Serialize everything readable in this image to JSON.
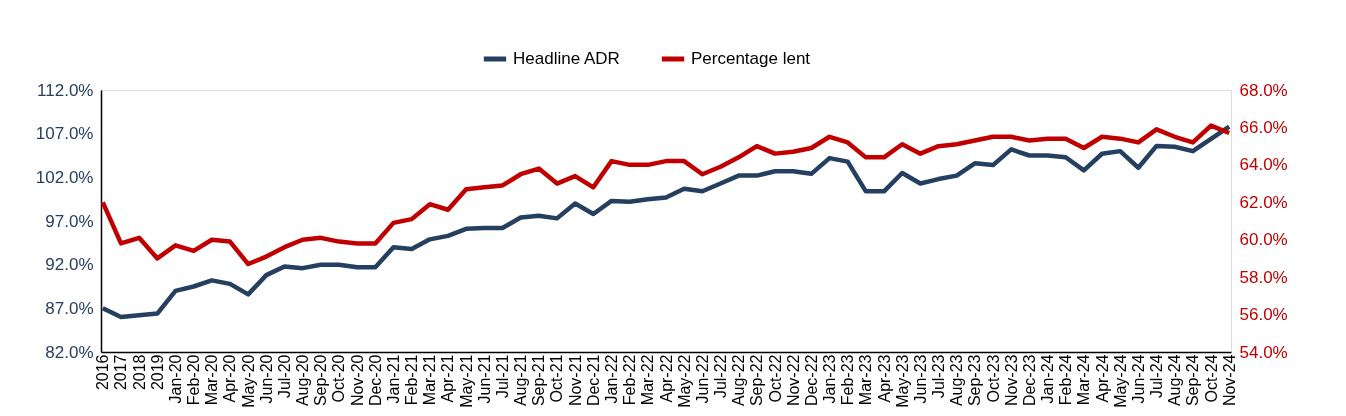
{
  "chart_data": {
    "type": "line",
    "categories": [
      "2016",
      "2017",
      "2018",
      "2019",
      "Jan-20",
      "Feb-20",
      "Mar-20",
      "Apr-20",
      "May-20",
      "Jun-20",
      "Jul-20",
      "Aug-20",
      "Sep-20",
      "Oct-20",
      "Nov-20",
      "Dec-20",
      "Jan-21",
      "Feb-21",
      "Mar-21",
      "Apr-21",
      "May-21",
      "Jun-21",
      "Jul-21",
      "Aug-21",
      "Sep-21",
      "Oct-21",
      "Nov-21",
      "Dec-21",
      "Jan-22",
      "Feb-22",
      "Mar-22",
      "Apr-22",
      "May-22",
      "Jun-22",
      "Jul-22",
      "Aug-22",
      "Sep-22",
      "Oct-22",
      "Nov-22",
      "Dec-22",
      "Jan-23",
      "Feb-23",
      "Mar-23",
      "Apr-23",
      "May-23",
      "Jun-23",
      "Jul-23",
      "Aug-23",
      "Sep-23",
      "Oct-23",
      "Nov-23",
      "Dec-23",
      "Jan-24",
      "Feb-24",
      "Mar-24",
      "Apr-24",
      "May-24",
      "Jun-24",
      "Jul-24",
      "Aug-24",
      "Sep-24",
      "Oct-24",
      "Nov-24"
    ],
    "series": [
      {
        "name": "Headline ADR",
        "color": "#243f60",
        "values": [
          87.0,
          86.0,
          86.2,
          86.4,
          89.0,
          89.5,
          90.2,
          89.8,
          88.6,
          90.8,
          91.8,
          91.6,
          92.0,
          92.0,
          91.7,
          91.7,
          94.0,
          93.8,
          94.9,
          95.3,
          96.1,
          96.2,
          96.2,
          97.4,
          97.6,
          97.3,
          99.0,
          97.8,
          99.3,
          99.2,
          99.5,
          99.7,
          100.7,
          100.4,
          101.3,
          102.2,
          102.2,
          102.7,
          102.7,
          102.4,
          104.2,
          103.8,
          100.4,
          100.4,
          102.5,
          101.3,
          101.8,
          102.2,
          103.6,
          103.4,
          105.2,
          104.5,
          104.5,
          104.3,
          102.8,
          104.7,
          105.0,
          103.1,
          105.6,
          105.5,
          105.0,
          106.4,
          107.8
        ]
      },
      {
        "name": "Percentage lent",
        "color": "#c00000",
        "axis": "y2",
        "values": [
          62.0,
          59.8,
          60.1,
          59.0,
          59.7,
          59.4,
          60.0,
          59.9,
          58.7,
          59.1,
          59.6,
          60.0,
          60.1,
          59.9,
          59.8,
          59.8,
          60.9,
          61.1,
          61.9,
          61.6,
          62.7,
          62.8,
          62.9,
          63.5,
          63.8,
          63.0,
          63.4,
          62.8,
          64.2,
          64.0,
          64.0,
          64.2,
          64.2,
          63.5,
          63.9,
          64.4,
          65.0,
          64.6,
          64.7,
          64.9,
          65.5,
          65.2,
          64.4,
          64.4,
          65.1,
          64.6,
          65.0,
          65.1,
          65.3,
          65.5,
          65.5,
          65.3,
          65.4,
          65.4,
          64.9,
          65.5,
          65.4,
          65.2,
          65.9,
          65.5,
          65.2,
          66.1,
          65.7
        ]
      }
    ],
    "ylim": [
      82,
      112
    ],
    "yticks": [
      {
        "value": 82,
        "label": "82.0%"
      },
      {
        "value": 87,
        "label": "87.0%"
      },
      {
        "value": 92,
        "label": "92.0%"
      },
      {
        "value": 97,
        "label": "97.0%"
      },
      {
        "value": 102,
        "label": "102.0%"
      },
      {
        "value": 107,
        "label": "107.0%"
      },
      {
        "value": 112,
        "label": "112.0%"
      }
    ],
    "y2lim": [
      54,
      68
    ],
    "y2ticks": [
      {
        "value": 54,
        "label": "54.0%"
      },
      {
        "value": 56,
        "label": "56.0%"
      },
      {
        "value": 58,
        "label": "58.0%"
      },
      {
        "value": 60,
        "label": "60.0%"
      },
      {
        "value": 62,
        "label": "62.0%"
      },
      {
        "value": 64,
        "label": "64.0%"
      },
      {
        "value": 66,
        "label": "66.0%"
      },
      {
        "value": 68,
        "label": "68.0%"
      }
    ],
    "grid": false,
    "legend": "top",
    "marker": "none",
    "line_style": "solid"
  }
}
